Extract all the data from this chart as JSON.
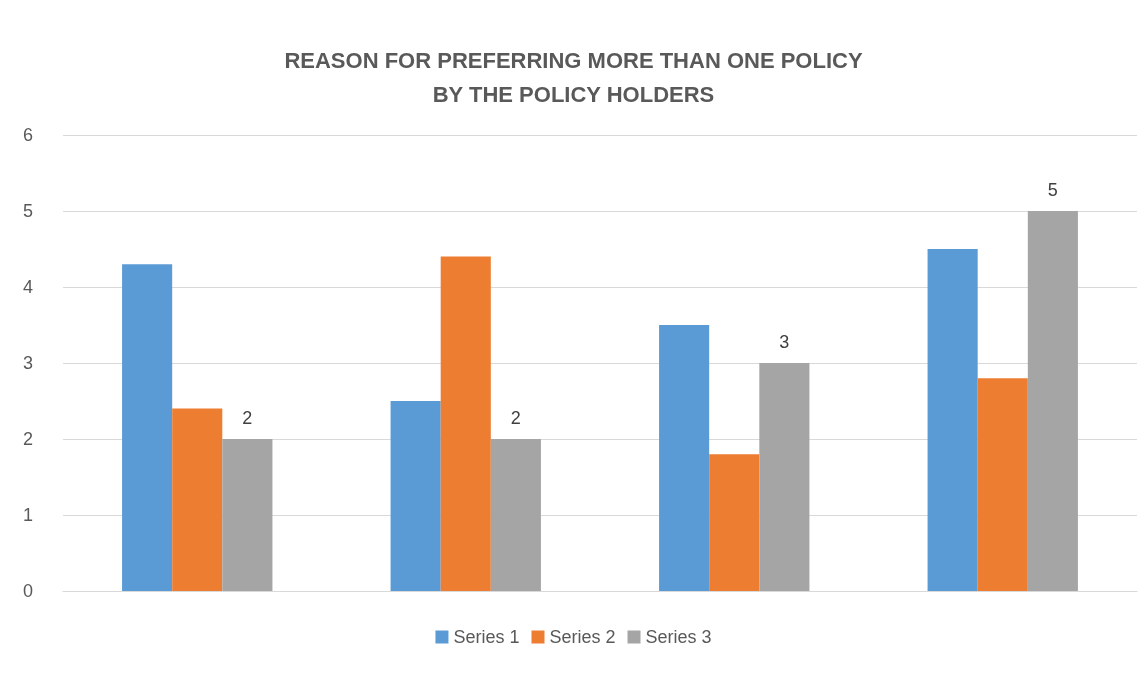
{
  "chart_data": {
    "type": "bar",
    "title": "REASON FOR PREFERRING MORE THAN ONE POLICY\nBY THE POLICY HOLDERS",
    "categories": [
      null,
      null,
      null,
      null
    ],
    "series": [
      {
        "name": "Series 1",
        "color": "#5b9bd5",
        "values": [
          4.3,
          2.5,
          3.5,
          4.5
        ]
      },
      {
        "name": "Series 2",
        "color": "#ed7d31",
        "values": [
          2.4,
          4.4,
          1.8,
          2.8
        ]
      },
      {
        "name": "Series 3",
        "color": "#a5a5a5",
        "values": [
          2,
          2,
          3,
          5
        ],
        "value_labels": [
          "2",
          "2",
          "3",
          "5"
        ]
      }
    ],
    "ylim": [
      0,
      6
    ],
    "yticks": [
      0,
      1,
      2,
      3,
      4,
      5,
      6
    ],
    "grid": "y",
    "legend": "bottom"
  }
}
